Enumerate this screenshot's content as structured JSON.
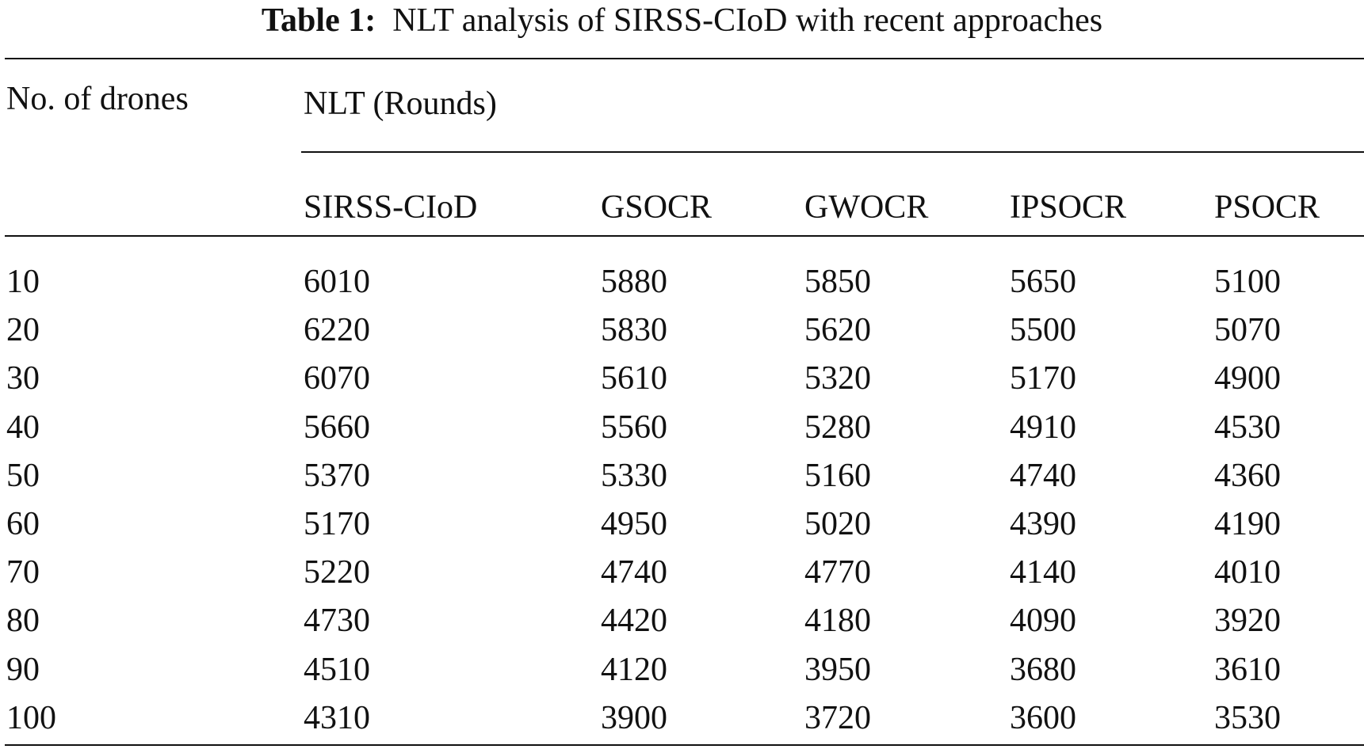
{
  "caption": {
    "label": "Table 1:",
    "text": "NLT analysis of SIRSS-CIoD with recent approaches"
  },
  "table": {
    "row_header": "No. of drones",
    "group_header": "NLT (Rounds)",
    "columns": [
      "SIRSS-CIoD",
      "GSOCR",
      "GWOCR",
      "IPSOCR",
      "PSOCR"
    ],
    "rows": [
      {
        "drones": "10",
        "values": [
          "6010",
          "5880",
          "5850",
          "5650",
          "5100"
        ]
      },
      {
        "drones": "20",
        "values": [
          "6220",
          "5830",
          "5620",
          "5500",
          "5070"
        ]
      },
      {
        "drones": "30",
        "values": [
          "6070",
          "5610",
          "5320",
          "5170",
          "4900"
        ]
      },
      {
        "drones": "40",
        "values": [
          "5660",
          "5560",
          "5280",
          "4910",
          "4530"
        ]
      },
      {
        "drones": "50",
        "values": [
          "5370",
          "5330",
          "5160",
          "4740",
          "4360"
        ]
      },
      {
        "drones": "60",
        "values": [
          "5170",
          "4950",
          "5020",
          "4390",
          "4190"
        ]
      },
      {
        "drones": "70",
        "values": [
          "5220",
          "4740",
          "4770",
          "4140",
          "4010"
        ]
      },
      {
        "drones": "80",
        "values": [
          "4730",
          "4420",
          "4180",
          "4090",
          "3920"
        ]
      },
      {
        "drones": "90",
        "values": [
          "4510",
          "4120",
          "3950",
          "3680",
          "3610"
        ]
      },
      {
        "drones": "100",
        "values": [
          "4310",
          "3900",
          "3720",
          "3600",
          "3530"
        ]
      }
    ]
  }
}
